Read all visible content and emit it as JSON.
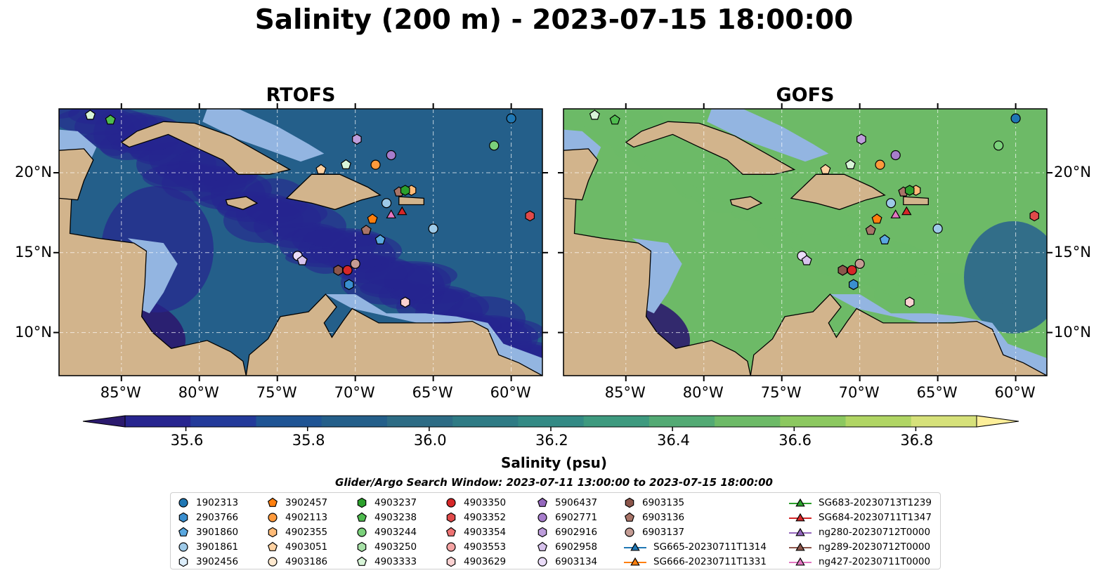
{
  "title": "Salinity (200 m) - 2023-07-15 18:00:00",
  "panels": [
    {
      "title": "RTOFS"
    },
    {
      "title": "GOFS"
    }
  ],
  "axes": {
    "x_ticks": [
      "85°W",
      "80°W",
      "75°W",
      "70°W",
      "65°W",
      "60°W"
    ],
    "y_ticks": [
      "20°N",
      "15°N",
      "10°N"
    ],
    "lon_range": [
      -89,
      -58
    ],
    "lat_range": [
      7.3,
      24
    ],
    "x_tick_values": [
      -85,
      -80,
      -75,
      -70,
      -65,
      -60
    ],
    "y_tick_values": [
      20,
      15,
      10
    ]
  },
  "colorbar": {
    "label": "Salinity (psu)",
    "ticks": [
      "35.6",
      "35.8",
      "36.0",
      "36.2",
      "36.4",
      "36.6",
      "36.8"
    ],
    "tick_values": [
      35.6,
      35.8,
      36.0,
      36.2,
      36.4,
      36.6,
      36.8
    ],
    "range": [
      35.5,
      36.9
    ],
    "colors": [
      "#2b1a6e",
      "#27258f",
      "#233a9a",
      "#1f5494",
      "#245f8a",
      "#2d6c85",
      "#2f7b85",
      "#338a85",
      "#3e9a7f",
      "#53aa74",
      "#6dba67",
      "#8cc860",
      "#b0d564",
      "#d6e17a",
      "#fdef9a"
    ]
  },
  "search_window": "Glider/Argo Search Window: 2023-07-11 13:00:00 to 2023-07-15 18:00:00",
  "legend": [
    {
      "label": "1902313",
      "marker": "circle",
      "color": "#1f77b4"
    },
    {
      "label": "2903766",
      "marker": "hexagon",
      "color": "#3a8fd0"
    },
    {
      "label": "3901860",
      "marker": "pentagon",
      "color": "#5aa8e0"
    },
    {
      "label": "3901861",
      "marker": "circle",
      "color": "#9ecae8"
    },
    {
      "label": "3902456",
      "marker": "hexagon",
      "color": "#dcedfa"
    },
    {
      "label": "3902457",
      "marker": "pentagon",
      "color": "#ff7f0e"
    },
    {
      "label": "4902113",
      "marker": "circle",
      "color": "#ff9a3c"
    },
    {
      "label": "4902355",
      "marker": "hexagon",
      "color": "#ffbb78"
    },
    {
      "label": "4903051",
      "marker": "pentagon",
      "color": "#ffd2a2"
    },
    {
      "label": "4903186",
      "marker": "circle",
      "color": "#ffe9cf"
    },
    {
      "label": "4903237",
      "marker": "hexagon",
      "color": "#2ca02c"
    },
    {
      "label": "4903238",
      "marker": "pentagon",
      "color": "#4fbb4f"
    },
    {
      "label": "4903244",
      "marker": "circle",
      "color": "#7bd17b"
    },
    {
      "label": "4903250",
      "marker": "hexagon",
      "color": "#a6e0a6"
    },
    {
      "label": "4903333",
      "marker": "pentagon",
      "color": "#d8f5d8"
    },
    {
      "label": "4903350",
      "marker": "circle",
      "color": "#d62728"
    },
    {
      "label": "4903352",
      "marker": "hexagon",
      "color": "#e04a4a"
    },
    {
      "label": "4903354",
      "marker": "pentagon",
      "color": "#ee7373"
    },
    {
      "label": "4903553",
      "marker": "circle",
      "color": "#f4a3a3"
    },
    {
      "label": "4903629",
      "marker": "hexagon",
      "color": "#fad1d1"
    },
    {
      "label": "5906437",
      "marker": "pentagon",
      "color": "#9467bd"
    },
    {
      "label": "6902771",
      "marker": "circle",
      "color": "#a77dcc"
    },
    {
      "label": "6902916",
      "marker": "hexagon",
      "color": "#bd9ddb"
    },
    {
      "label": "6902958",
      "marker": "pentagon",
      "color": "#d7c2ec"
    },
    {
      "label": "6903134",
      "marker": "circle",
      "color": "#eadcf8"
    },
    {
      "label": "6903135",
      "marker": "hexagon",
      "color": "#8c564b"
    },
    {
      "label": "6903136",
      "marker": "pentagon",
      "color": "#a87468"
    },
    {
      "label": "6903137",
      "marker": "circle",
      "color": "#c49c94"
    },
    {
      "label": "SG665-20230711T1314",
      "marker": "triangle",
      "color": "#1f77b4"
    },
    {
      "label": "SG666-20230711T1331",
      "marker": "triangle",
      "color": "#ff7f0e"
    },
    {
      "label": "SG683-20230713T1239",
      "marker": "triangle",
      "color": "#2ca02c"
    },
    {
      "label": "SG684-20230711T1347",
      "marker": "triangle",
      "color": "#d62728"
    },
    {
      "label": "ng280-20230712T0000",
      "marker": "triangle",
      "color": "#9467bd"
    },
    {
      "label": "ng289-20230712T0000",
      "marker": "triangle",
      "color": "#8c564b"
    },
    {
      "label": "ng427-20230711T0000",
      "marker": "triangle",
      "color": "#e377c2"
    }
  ],
  "observations": [
    {
      "id": "1902313",
      "lon": -60.0,
      "lat": 23.4
    },
    {
      "id": "4903244",
      "lon": -61.1,
      "lat": 21.7
    },
    {
      "id": "6902771",
      "lon": -67.7,
      "lat": 21.1
    },
    {
      "id": "6902916",
      "lon": -69.9,
      "lat": 22.1
    },
    {
      "id": "4902113",
      "lon": -68.7,
      "lat": 20.5
    },
    {
      "id": "4903333",
      "lon": -70.6,
      "lat": 20.5
    },
    {
      "id": "4903051",
      "lon": -72.2,
      "lat": 20.2
    },
    {
      "id": "4903333",
      "lon": -87.0,
      "lat": 23.6
    },
    {
      "id": "4903238",
      "lon": -85.7,
      "lat": 23.3
    },
    {
      "id": "4902355",
      "lon": -66.4,
      "lat": 18.9
    },
    {
      "id": "6903136",
      "lon": -67.2,
      "lat": 18.8
    },
    {
      "id": "4903237",
      "lon": -66.8,
      "lat": 18.9
    },
    {
      "id": "3901861",
      "lon": -68.0,
      "lat": 18.1
    },
    {
      "id": "SG684-20230711T1347",
      "lon": -67.0,
      "lat": 17.6
    },
    {
      "id": "ng427-20230711T0000",
      "lon": -67.7,
      "lat": 17.4
    },
    {
      "id": "3902457",
      "lon": -68.9,
      "lat": 17.1
    },
    {
      "id": "6903136",
      "lon": -69.3,
      "lat": 16.4
    },
    {
      "id": "3901860",
      "lon": -68.4,
      "lat": 15.8
    },
    {
      "id": "3901861",
      "lon": -65.0,
      "lat": 16.5
    },
    {
      "id": "4903352",
      "lon": -58.8,
      "lat": 17.3
    },
    {
      "id": "6903134",
      "lon": -73.7,
      "lat": 14.8
    },
    {
      "id": "6902958",
      "lon": -73.4,
      "lat": 14.5
    },
    {
      "id": "6903137",
      "lon": -70.0,
      "lat": 14.3
    },
    {
      "id": "6903135",
      "lon": -71.1,
      "lat": 13.9
    },
    {
      "id": "4903350",
      "lon": -70.5,
      "lat": 13.9
    },
    {
      "id": "2903766",
      "lon": -70.4,
      "lat": 13.0
    },
    {
      "id": "4903629",
      "lon": -66.8,
      "lat": 11.9
    }
  ],
  "map_colors": {
    "land": "#d2b48c",
    "shelf": "#93b5e1",
    "coast": "#000000",
    "grid": "#ffffff"
  }
}
